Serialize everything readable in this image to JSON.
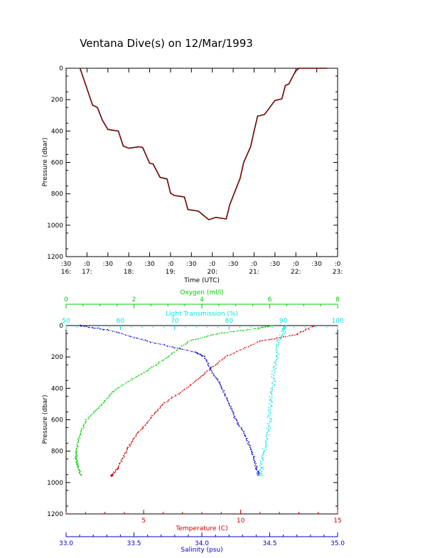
{
  "title": "Ventana Dive(s) on 12/Mar/1993",
  "chart_data": [
    {
      "type": "line",
      "xlabel": "Time (UTC)",
      "ylabel": "Pressure (dbar)",
      "xlim": [
        "16:30",
        "23:00"
      ],
      "ylim": [
        1200,
        0
      ],
      "x_ticks": [
        {
          "top": ":30",
          "bottom": "16:"
        },
        {
          "top": ":0",
          "bottom": "17:"
        },
        {
          "top": ":30",
          "bottom": ""
        },
        {
          "top": ":0",
          "bottom": "18:"
        },
        {
          "top": ":30",
          "bottom": ""
        },
        {
          "top": ":0",
          "bottom": "19:"
        },
        {
          "top": ":30",
          "bottom": ""
        },
        {
          "top": ":0",
          "bottom": "20:"
        },
        {
          "top": ":30",
          "bottom": ""
        },
        {
          "top": ":0",
          "bottom": "21:"
        },
        {
          "top": ":30",
          "bottom": ""
        },
        {
          "top": ":0",
          "bottom": "22:"
        },
        {
          "top": ":30",
          "bottom": ""
        },
        {
          "top": ":0",
          "bottom": "23:"
        }
      ],
      "y_ticks": [
        "0",
        "200",
        "400",
        "600",
        "800",
        "1000",
        "1200"
      ],
      "series": [
        {
          "color": "#cc0000",
          "x": [
            "16:50",
            "17:00",
            "17:08",
            "17:15",
            "17:22",
            "17:30",
            "17:37",
            "17:45",
            "17:52",
            "18:00",
            "18:15",
            "18:20",
            "18:30",
            "18:35",
            "18:45",
            "18:55",
            "19:00",
            "19:05",
            "19:20",
            "19:25",
            "19:40",
            "19:55",
            "20:05",
            "20:20",
            "20:25",
            "20:40",
            "20:45",
            "20:55",
            "21:00",
            "21:05",
            "21:15",
            "21:30",
            "21:40",
            "21:45",
            "21:50",
            "22:00",
            "22:05",
            "22:10",
            "22:20",
            "22:25",
            "22:30",
            "22:40",
            "22:45"
          ],
          "y": [
            0,
            130,
            235,
            250,
            330,
            390,
            395,
            400,
            495,
            510,
            500,
            505,
            605,
            610,
            695,
            705,
            795,
            810,
            820,
            900,
            910,
            965,
            950,
            960,
            870,
            700,
            600,
            500,
            400,
            305,
            295,
            205,
            195,
            110,
            100,
            15,
            0,
            0,
            0,
            0,
            0,
            0,
            0
          ]
        }
      ]
    },
    {
      "type": "scatter",
      "ylabel": "Pressure (dbar)",
      "ylim": [
        1200,
        0
      ],
      "y_ticks": [
        "0",
        "200",
        "400",
        "600",
        "800",
        "1000",
        "1200"
      ],
      "axes": [
        {
          "label": "Oxygen (ml/l)",
          "color": "#00cc00",
          "position": "top",
          "range": [
            0,
            8
          ],
          "ticks": [
            "0",
            "2",
            "4",
            "6",
            "8"
          ]
        },
        {
          "label": "Light Transmission (%)",
          "color": "#00e5e5",
          "position": "top",
          "range": [
            50,
            100
          ],
          "ticks": [
            "50",
            "60",
            "70",
            "80",
            "90",
            "100"
          ]
        },
        {
          "label": "Temperature (C)",
          "color": "#cc0000",
          "position": "bottom",
          "range": [
            1,
            15
          ],
          "ticks": [
            "5",
            "10",
            "15"
          ]
        },
        {
          "label": "Salinity (psu)",
          "color": "#0000cc",
          "position": "bottom",
          "range": [
            33.0,
            35.0
          ],
          "ticks": [
            "33.0",
            "33.5",
            "34.0",
            "34.5",
            "35.0"
          ]
        }
      ],
      "series": [
        {
          "axis": "Oxygen (ml/l)",
          "color": "#00cc00",
          "x": [
            6.1,
            5.6,
            4.5,
            3.6,
            3.0,
            2.3,
            1.5,
            1.05,
            0.6,
            0.4,
            0.3,
            0.3,
            0.35,
            0.45
          ],
          "y": [
            0,
            20,
            50,
            100,
            200,
            300,
            400,
            500,
            600,
            700,
            800,
            850,
            900,
            960
          ]
        },
        {
          "axis": "Light Transmission (%)",
          "color": "#00e5e5",
          "x": [
            90.5,
            90,
            89.2,
            88.8,
            88.3,
            88,
            87.7,
            87.5,
            87,
            86.5,
            86,
            85.8
          ],
          "y": [
            0,
            40,
            100,
            200,
            300,
            400,
            500,
            600,
            700,
            800,
            900,
            960
          ]
        },
        {
          "axis": "Temperature (C)",
          "color": "#cc0000",
          "x": [
            13.8,
            12.8,
            11,
            9.2,
            8.2,
            7.2,
            6,
            5.3,
            4.6,
            4.1,
            3.7,
            3.4,
            3.3
          ],
          "y": [
            0,
            60,
            100,
            200,
            300,
            400,
            500,
            600,
            700,
            800,
            900,
            950,
            960
          ]
        },
        {
          "axis": "Salinity (psu)",
          "color": "#0000cc",
          "x": [
            33.1,
            33.32,
            33.6,
            33.95,
            34.02,
            34.08,
            34.15,
            34.2,
            34.25,
            34.32,
            34.37,
            34.4,
            34.42
          ],
          "y": [
            0,
            30,
            100,
            170,
            200,
            300,
            400,
            500,
            600,
            700,
            800,
            900,
            960
          ]
        }
      ]
    }
  ]
}
